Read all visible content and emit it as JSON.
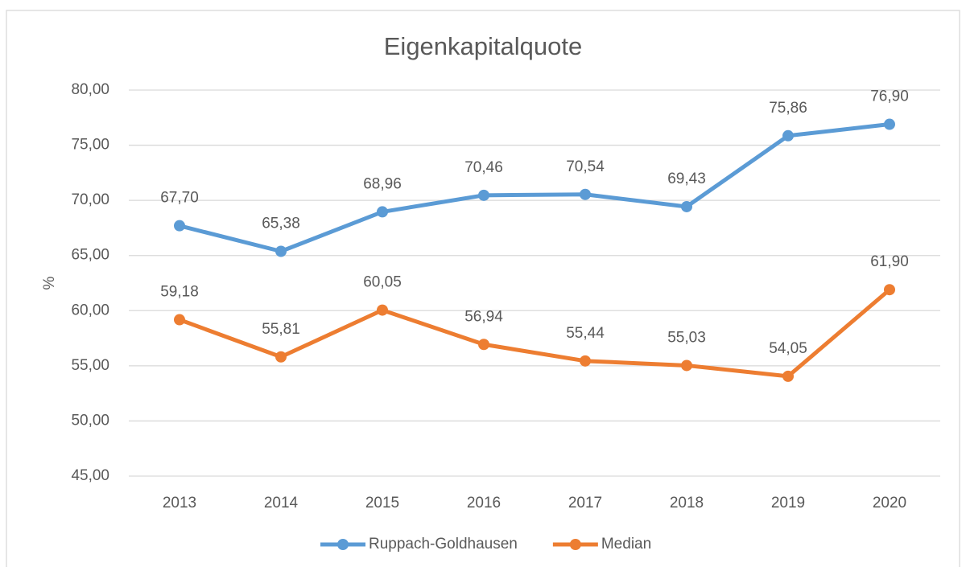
{
  "chart_data": {
    "type": "line",
    "title": "Eigenkapitalquote",
    "y_label": "%",
    "categories": [
      "2013",
      "2014",
      "2015",
      "2016",
      "2017",
      "2018",
      "2019",
      "2020"
    ],
    "series": [
      {
        "name": "Ruppach-Goldhausen",
        "color": "#5b9bd5",
        "values": [
          67.7,
          65.38,
          68.96,
          70.46,
          70.54,
          69.43,
          75.86,
          76.9
        ],
        "value_labels": [
          "67,70",
          "65,38",
          "68,96",
          "70,46",
          "70,54",
          "69,43",
          "75,86",
          "76,90"
        ]
      },
      {
        "name": "Median",
        "color": "#ed7d31",
        "values": [
          59.18,
          55.81,
          60.05,
          56.94,
          55.44,
          55.03,
          54.05,
          61.9
        ],
        "value_labels": [
          "59,18",
          "55,81",
          "60,05",
          "56,94",
          "55,44",
          "55,03",
          "54,05",
          "61,90"
        ]
      }
    ],
    "ylim": [
      45,
      80
    ],
    "yticks": [
      {
        "value": 45,
        "label": "45,00"
      },
      {
        "value": 50,
        "label": "50,00"
      },
      {
        "value": 55,
        "label": "55,00"
      },
      {
        "value": 60,
        "label": "60,00"
      },
      {
        "value": 65,
        "label": "65,00"
      },
      {
        "value": 70,
        "label": "70,00"
      },
      {
        "value": 75,
        "label": "75,00"
      },
      {
        "value": 80,
        "label": "80,00"
      }
    ],
    "grid": true,
    "legend": "bottom"
  }
}
